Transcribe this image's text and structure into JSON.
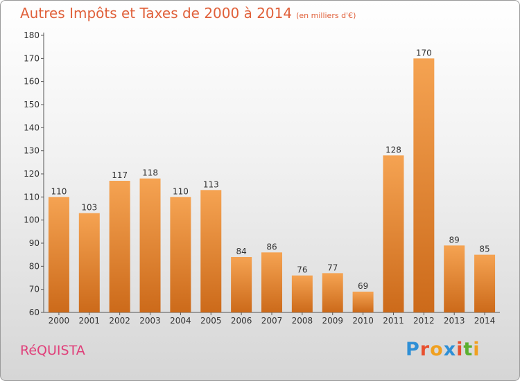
{
  "header": {
    "title": "Autres Impôts et Taxes de 2000 à 2014",
    "unit": "(en milliers d'€)"
  },
  "commune": "RéQUISTA",
  "logo": {
    "text": "Proxiti",
    "colors": [
      "#2e8fd6",
      "#e8502f",
      "#f0a020",
      "#2e8fd6",
      "#e8502f",
      "#5bb030",
      "#f0a020"
    ]
  },
  "chart_data": {
    "type": "bar",
    "title": "Autres Impôts et Taxes de 2000 à 2014",
    "subtitle": "(en milliers d'€)",
    "categories": [
      "2000",
      "2001",
      "2002",
      "2003",
      "2004",
      "2005",
      "2006",
      "2007",
      "2008",
      "2009",
      "2010",
      "2011",
      "2012",
      "2013",
      "2014"
    ],
    "values": [
      110,
      103,
      117,
      118,
      110,
      113,
      84,
      86,
      76,
      77,
      69,
      128,
      170,
      89,
      85
    ],
    "ylim": [
      60,
      180
    ],
    "yticks": [
      60,
      70,
      80,
      90,
      100,
      110,
      120,
      130,
      140,
      150,
      160,
      170,
      180
    ],
    "grid": false,
    "bar_color_top": "#f5a352",
    "bar_color_bottom": "#cc6a1a"
  }
}
